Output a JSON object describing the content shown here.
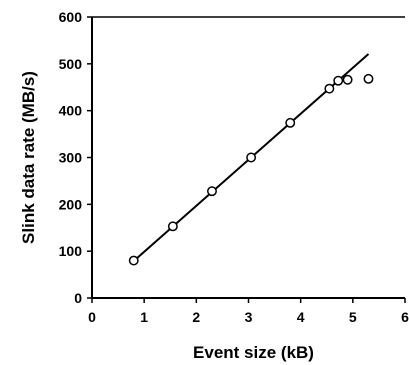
{
  "chart_data": {
    "type": "scatter",
    "title": "",
    "xlabel": "Event size (kB)",
    "ylabel": "Slink data rate (MB/s)",
    "xlim": [
      0,
      6
    ],
    "ylim": [
      0,
      600
    ],
    "x_ticks": [
      0,
      1,
      2,
      3,
      4,
      5,
      6
    ],
    "y_ticks": [
      0,
      100,
      200,
      300,
      400,
      500,
      600
    ],
    "x_tick_labels": [
      "0",
      "1",
      "2",
      "3",
      "4",
      "5",
      "6"
    ],
    "y_tick_labels": [
      "0",
      "100",
      "200",
      "300",
      "400",
      "500",
      "600"
    ],
    "grid": false,
    "series": [
      {
        "marker": "open-circle",
        "color": "#000000",
        "points": [
          {
            "x": 0.8,
            "y": 80
          },
          {
            "x": 1.55,
            "y": 153
          },
          {
            "x": 2.3,
            "y": 228
          },
          {
            "x": 3.05,
            "y": 300
          },
          {
            "x": 3.8,
            "y": 374
          },
          {
            "x": 4.55,
            "y": 447
          },
          {
            "x": 4.72,
            "y": 464
          },
          {
            "x": 4.9,
            "y": 466
          },
          {
            "x": 5.3,
            "y": 468
          }
        ]
      }
    ],
    "fit_line": {
      "color": "#000000",
      "points": [
        {
          "x": 0.8,
          "y": 79
        },
        {
          "x": 5.3,
          "y": 521
        }
      ]
    }
  }
}
